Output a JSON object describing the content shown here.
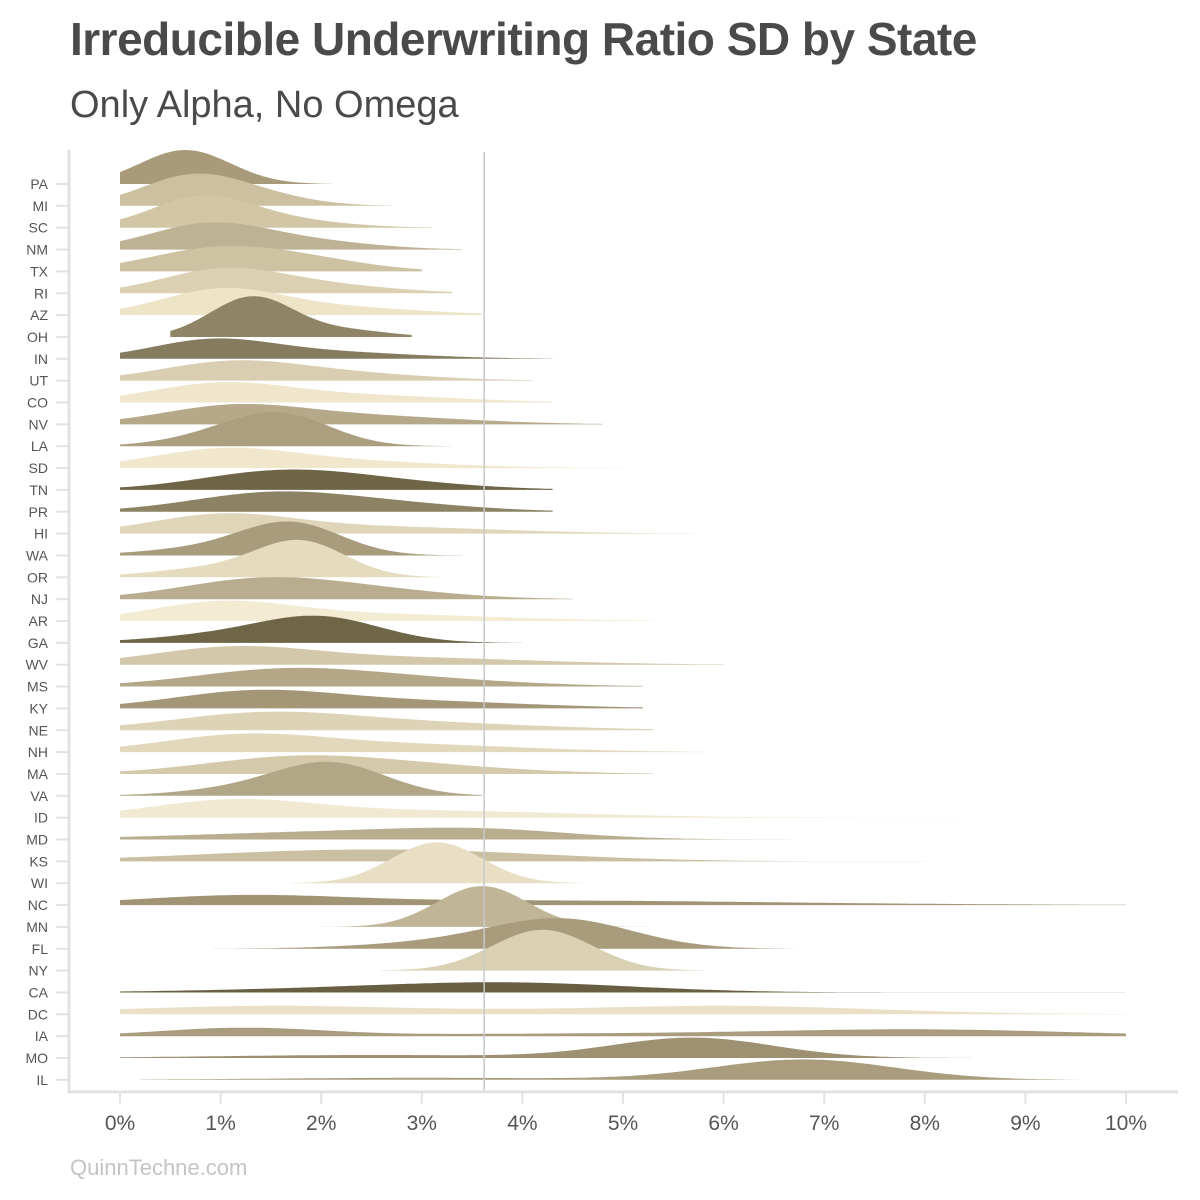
{
  "title": "Irreducible Underwriting Ratio SD by State",
  "subtitle": "Only Alpha, No Omega",
  "caption": "QuinnTechne.com",
  "chart_data": {
    "type": "ridgeline",
    "x_axis": {
      "range": [
        0,
        10
      ],
      "ticks": [
        0,
        1,
        2,
        3,
        4,
        5,
        6,
        7,
        8,
        9,
        10
      ],
      "tick_labels": [
        "0%",
        "1%",
        "2%",
        "3%",
        "4%",
        "5%",
        "6%",
        "7%",
        "8%",
        "9%",
        "10%"
      ]
    },
    "reference_line": 3.62,
    "grid": false,
    "legend": "none",
    "series": [
      {
        "name": "PA",
        "color": "#a89a7a",
        "height": 1.0,
        "components": [
          [
            0.65,
            0.45,
            1.0
          ]
        ],
        "range": [
          0.0,
          2.1
        ]
      },
      {
        "name": "MI",
        "color": "#ccc0a0",
        "height": 0.95,
        "components": [
          [
            0.7,
            0.5,
            1.0
          ],
          [
            1.4,
            0.5,
            0.3
          ]
        ],
        "range": [
          0.0,
          2.7
        ]
      },
      {
        "name": "SC",
        "color": "#d2c6a6",
        "height": 0.95,
        "components": [
          [
            0.8,
            0.5,
            1.0
          ],
          [
            1.6,
            0.6,
            0.25
          ]
        ],
        "range": [
          0.0,
          3.1
        ]
      },
      {
        "name": "NM",
        "color": "#beb294",
        "height": 0.8,
        "components": [
          [
            0.9,
            0.6,
            1.0
          ],
          [
            2.0,
            0.6,
            0.25
          ]
        ],
        "range": [
          0.0,
          3.4
        ]
      },
      {
        "name": "TX",
        "color": "#cdc2a2",
        "height": 0.75,
        "components": [
          [
            1.0,
            0.7,
            1.0
          ],
          [
            2.0,
            0.6,
            0.3
          ]
        ],
        "range": [
          0.0,
          3.0
        ]
      },
      {
        "name": "RI",
        "color": "#dbd0b2",
        "height": 0.75,
        "components": [
          [
            1.0,
            0.6,
            1.0
          ],
          [
            2.0,
            0.7,
            0.35
          ]
        ],
        "range": [
          0.0,
          3.3
        ]
      },
      {
        "name": "AZ",
        "color": "#eee4c8",
        "height": 0.8,
        "components": [
          [
            1.0,
            0.6,
            1.0
          ],
          [
            2.2,
            0.8,
            0.3
          ]
        ],
        "range": [
          0.0,
          3.6
        ]
      },
      {
        "name": "OH",
        "color": "#8f8566",
        "height": 1.2,
        "components": [
          [
            1.32,
            0.42,
            1.0
          ],
          [
            2.3,
            0.4,
            0.15
          ]
        ],
        "range": [
          0.5,
          2.9
        ]
      },
      {
        "name": "IN",
        "color": "#857b5e",
        "height": 0.6,
        "components": [
          [
            0.9,
            0.6,
            1.0
          ],
          [
            2.0,
            0.9,
            0.4
          ]
        ],
        "range": [
          0.0,
          4.3
        ]
      },
      {
        "name": "UT",
        "color": "#d9ceb1",
        "height": 0.6,
        "components": [
          [
            1.1,
            0.7,
            1.0
          ],
          [
            2.3,
            0.8,
            0.35
          ]
        ],
        "range": [
          0.0,
          4.1
        ]
      },
      {
        "name": "CO",
        "color": "#efe6cb",
        "height": 0.6,
        "components": [
          [
            1.0,
            0.7,
            1.0
          ],
          [
            2.5,
            0.9,
            0.35
          ]
        ],
        "range": [
          0.0,
          4.3
        ]
      },
      {
        "name": "NV",
        "color": "#b5a98a",
        "height": 0.6,
        "components": [
          [
            1.1,
            0.7,
            1.0
          ],
          [
            2.4,
            1.0,
            0.5
          ]
        ],
        "range": [
          0.0,
          4.8
        ]
      },
      {
        "name": "LA",
        "color": "#ab9f80",
        "height": 1.0,
        "components": [
          [
            1.6,
            0.5,
            1.0
          ],
          [
            0.9,
            0.5,
            0.25
          ]
        ],
        "range": [
          0.0,
          3.3
        ]
      },
      {
        "name": "SD",
        "color": "#f0e7cc",
        "height": 0.6,
        "components": [
          [
            1.0,
            0.7,
            1.0
          ],
          [
            2.2,
            1.0,
            0.4
          ]
        ],
        "range": [
          0.0,
          5.0
        ]
      },
      {
        "name": "TN",
        "color": "#6e6547",
        "height": 0.6,
        "components": [
          [
            1.6,
            0.8,
            1.0
          ],
          [
            2.8,
            0.8,
            0.3
          ]
        ],
        "range": [
          0.0,
          4.3
        ]
      },
      {
        "name": "PR",
        "color": "#8c8264",
        "height": 0.6,
        "components": [
          [
            1.5,
            0.8,
            1.0
          ],
          [
            2.8,
            0.8,
            0.35
          ]
        ],
        "range": [
          0.0,
          4.3
        ]
      },
      {
        "name": "HI",
        "color": "#dfd5b8",
        "height": 0.6,
        "components": [
          [
            1.0,
            0.7,
            1.0
          ],
          [
            2.5,
            1.2,
            0.4
          ]
        ],
        "range": [
          0.0,
          5.7
        ]
      },
      {
        "name": "WA",
        "color": "#a89c7d",
        "height": 1.0,
        "components": [
          [
            1.7,
            0.5,
            1.0
          ],
          [
            0.8,
            0.6,
            0.2
          ]
        ],
        "range": [
          0.0,
          3.4
        ]
      },
      {
        "name": "OR",
        "color": "#e5dbbe",
        "height": 1.1,
        "components": [
          [
            1.8,
            0.45,
            1.0
          ],
          [
            0.9,
            0.6,
            0.25
          ]
        ],
        "range": [
          0.0,
          3.2
        ]
      },
      {
        "name": "NJ",
        "color": "#b8ad8e",
        "height": 0.65,
        "components": [
          [
            1.4,
            0.8,
            1.0
          ],
          [
            2.6,
            0.8,
            0.35
          ]
        ],
        "range": [
          0.0,
          4.5
        ]
      },
      {
        "name": "AR",
        "color": "#f3ebd2",
        "height": 0.6,
        "components": [
          [
            1.0,
            0.7,
            1.0
          ],
          [
            2.5,
            1.2,
            0.4
          ]
        ],
        "range": [
          0.0,
          5.3
        ]
      },
      {
        "name": "GA",
        "color": "#6f6648",
        "height": 0.8,
        "components": [
          [
            2.0,
            0.6,
            1.0
          ],
          [
            1.0,
            0.7,
            0.3
          ]
        ],
        "range": [
          0.0,
          4.0
        ]
      },
      {
        "name": "WV",
        "color": "#d3c8a9",
        "height": 0.55,
        "components": [
          [
            1.1,
            0.8,
            1.0
          ],
          [
            2.8,
            1.3,
            0.45
          ]
        ],
        "range": [
          0.0,
          6.0
        ]
      },
      {
        "name": "MS",
        "color": "#b3a787",
        "height": 0.55,
        "components": [
          [
            1.6,
            0.9,
            1.0
          ],
          [
            3.0,
            1.0,
            0.4
          ]
        ],
        "range": [
          0.0,
          5.2
        ]
      },
      {
        "name": "KY",
        "color": "#a39778",
        "height": 0.55,
        "components": [
          [
            1.3,
            0.8,
            1.0
          ],
          [
            2.8,
            1.2,
            0.5
          ]
        ],
        "range": [
          0.0,
          5.2
        ]
      },
      {
        "name": "NE",
        "color": "#ddd3b6",
        "height": 0.55,
        "components": [
          [
            1.4,
            0.9,
            1.0
          ],
          [
            3.0,
            1.2,
            0.45
          ]
        ],
        "range": [
          0.0,
          5.3
        ]
      },
      {
        "name": "NH",
        "color": "#e2d8bb",
        "height": 0.55,
        "components": [
          [
            1.2,
            0.8,
            1.0
          ],
          [
            2.8,
            1.2,
            0.5
          ]
        ],
        "range": [
          0.0,
          5.8
        ]
      },
      {
        "name": "MA",
        "color": "#d4c9aa",
        "height": 0.55,
        "components": [
          [
            1.7,
            0.9,
            1.0
          ],
          [
            3.0,
            1.0,
            0.45
          ]
        ],
        "range": [
          0.0,
          5.3
        ]
      },
      {
        "name": "VA",
        "color": "#b1a686",
        "height": 1.0,
        "components": [
          [
            2.1,
            0.55,
            1.0
          ],
          [
            1.2,
            0.6,
            0.2
          ]
        ],
        "range": [
          0.0,
          3.6
        ]
      },
      {
        "name": "ID",
        "color": "#f1e9d1",
        "height": 0.55,
        "components": [
          [
            1.1,
            0.8,
            1.0
          ],
          [
            3.0,
            1.5,
            0.45
          ]
        ],
        "range": [
          0.0,
          8.4
        ]
      },
      {
        "name": "MD",
        "color": "#b8ad8f",
        "height": 0.35,
        "components": [
          [
            2.0,
            1.4,
            1.0
          ],
          [
            3.6,
            0.9,
            1.1
          ]
        ],
        "range": [
          0.0,
          7.0
        ]
      },
      {
        "name": "KS",
        "color": "#cabfa0",
        "height": 0.35,
        "components": [
          [
            1.8,
            1.4,
            1.0
          ],
          [
            3.4,
            1.3,
            0.8
          ]
        ],
        "range": [
          0.0,
          8.0
        ]
      },
      {
        "name": "WI",
        "color": "#e9dfc4",
        "height": 1.2,
        "components": [
          [
            3.15,
            0.45,
            1.0
          ]
        ],
        "range": [
          1.7,
          4.6
        ]
      },
      {
        "name": "NC",
        "color": "#a09474",
        "height": 0.3,
        "components": [
          [
            1.2,
            1.0,
            1.0
          ],
          [
            4.0,
            2.5,
            0.6
          ]
        ],
        "range": [
          0.0,
          10.0
        ]
      },
      {
        "name": "MN",
        "color": "#c1b597",
        "height": 1.2,
        "components": [
          [
            3.6,
            0.45,
            1.0
          ]
        ],
        "range": [
          2.0,
          5.8
        ]
      },
      {
        "name": "FL",
        "color": "#a89c7c",
        "height": 0.9,
        "components": [
          [
            4.4,
            0.7,
            1.0
          ],
          [
            3.2,
            0.8,
            0.2
          ]
        ],
        "range": [
          0.0,
          6.7
        ]
      },
      {
        "name": "NY",
        "color": "#dad0b3",
        "height": 1.2,
        "components": [
          [
            4.2,
            0.5,
            1.0
          ]
        ],
        "range": [
          2.6,
          5.8
        ]
      },
      {
        "name": "CA",
        "color": "#685f43",
        "height": 0.3,
        "components": [
          [
            4.0,
            1.2,
            1.0
          ],
          [
            2.5,
            1.5,
            0.5
          ]
        ],
        "range": [
          0.0,
          10.0
        ]
      },
      {
        "name": "DC",
        "color": "#eae0c5",
        "height": 0.25,
        "components": [
          [
            1.5,
            1.5,
            1.0
          ],
          [
            6.0,
            1.5,
            1.0
          ]
        ],
        "range": [
          0.0,
          10.0
        ]
      },
      {
        "name": "IA",
        "color": "#a89c7d",
        "height": 0.25,
        "components": [
          [
            1.2,
            0.8,
            1.0
          ],
          [
            8.0,
            1.5,
            0.8
          ],
          [
            4.5,
            2.0,
            0.3
          ]
        ],
        "range": [
          0.0,
          10.0
        ]
      },
      {
        "name": "MO",
        "color": "#9d9172",
        "height": 0.6,
        "components": [
          [
            5.7,
            0.8,
            1.0
          ],
          [
            2.5,
            1.5,
            0.15
          ]
        ],
        "range": [
          0.0,
          9.2
        ]
      },
      {
        "name": "IL",
        "color": "#a99d7e",
        "height": 0.6,
        "components": [
          [
            6.8,
            0.9,
            1.0
          ],
          [
            3.0,
            1.5,
            0.1
          ]
        ],
        "range": [
          0.2,
          10.0
        ]
      }
    ]
  }
}
